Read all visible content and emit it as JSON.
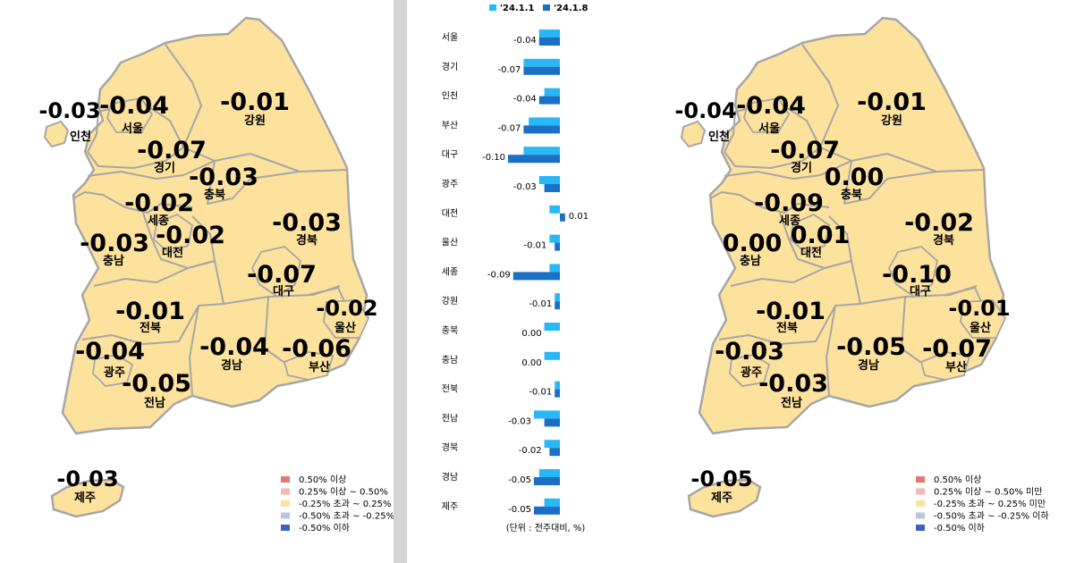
{
  "colors": {
    "land": "#fde29d",
    "border": "#a6a6a6",
    "bar_prev": "#27b8f5",
    "bar_curr": "#1b6fc4",
    "legend": [
      "#e87575",
      "#f4b6b6",
      "#fde29d",
      "#b7c6e2",
      "#3c63c2"
    ]
  },
  "chart_data": [
    {
      "type": "choropleth-map",
      "title": "",
      "regions": [
        {
          "name": "서울",
          "value": "-0.04"
        },
        {
          "name": "인천",
          "value": "-0.03"
        },
        {
          "name": "경기",
          "value": "-0.07"
        },
        {
          "name": "강원",
          "value": "-0.01"
        },
        {
          "name": "충북",
          "value": "-0.03"
        },
        {
          "name": "세종",
          "value": "-0.02"
        },
        {
          "name": "대전",
          "value": "-0.02"
        },
        {
          "name": "충남",
          "value": "-0.03"
        },
        {
          "name": "경북",
          "value": "-0.03"
        },
        {
          "name": "대구",
          "value": "-0.07"
        },
        {
          "name": "울산",
          "value": "-0.02"
        },
        {
          "name": "전북",
          "value": "-0.01"
        },
        {
          "name": "광주",
          "value": "-0.04"
        },
        {
          "name": "전남",
          "value": "-0.05"
        },
        {
          "name": "경남",
          "value": "-0.04"
        },
        {
          "name": "부산",
          "value": "-0.06"
        },
        {
          "name": "제주",
          "value": "-0.03"
        }
      ],
      "legend": [
        "0.50% 이상",
        "0.25% 이상 ~ 0.50%",
        "-0.25% 초과 ~ 0.25%",
        "-0.50% 초과 ~ -0.25%",
        "-0.50% 이하"
      ]
    },
    {
      "type": "bar",
      "orientation": "horizontal",
      "categories": [
        "서울",
        "경기",
        "인천",
        "부산",
        "대구",
        "광주",
        "대전",
        "울산",
        "세종",
        "강원",
        "충북",
        "충남",
        "전북",
        "전남",
        "경북",
        "경남",
        "제주"
      ],
      "series": [
        {
          "name": "'24.1.1",
          "values": [
            -0.04,
            -0.07,
            -0.03,
            -0.06,
            -0.07,
            -0.04,
            -0.02,
            -0.02,
            -0.02,
            -0.01,
            -0.03,
            -0.03,
            -0.01,
            -0.05,
            -0.03,
            -0.04,
            -0.03
          ]
        },
        {
          "name": "'24.1.8",
          "values": [
            -0.04,
            -0.07,
            -0.04,
            -0.07,
            -0.1,
            -0.03,
            0.01,
            -0.01,
            -0.09,
            -0.01,
            0.0,
            0.0,
            -0.01,
            -0.03,
            -0.02,
            -0.05,
            -0.05
          ]
        }
      ],
      "value_labels": [
        "-0.04",
        "-0.07",
        "-0.04",
        "-0.07",
        "-0.10",
        "-0.03",
        "0.01",
        "-0.01",
        "-0.09",
        "-0.01",
        "0.00",
        "0.00",
        "-0.01",
        "-0.03",
        "-0.02",
        "-0.05",
        "-0.05"
      ],
      "xlim": [
        -0.1,
        0.02
      ],
      "unit_note": "(단위 : 전주대비, %)"
    },
    {
      "type": "choropleth-map",
      "title": "",
      "regions": [
        {
          "name": "서울",
          "value": "-0.04"
        },
        {
          "name": "인천",
          "value": "-0.04"
        },
        {
          "name": "경기",
          "value": "-0.07"
        },
        {
          "name": "강원",
          "value": "-0.01"
        },
        {
          "name": "충북",
          "value": "0.00"
        },
        {
          "name": "세종",
          "value": "-0.09"
        },
        {
          "name": "대전",
          "value": "0.01"
        },
        {
          "name": "충남",
          "value": "0.00"
        },
        {
          "name": "경북",
          "value": "-0.02"
        },
        {
          "name": "대구",
          "value": "-0.10"
        },
        {
          "name": "울산",
          "value": "-0.01"
        },
        {
          "name": "전북",
          "value": "-0.01"
        },
        {
          "name": "광주",
          "value": "-0.03"
        },
        {
          "name": "전남",
          "value": "-0.03"
        },
        {
          "name": "경남",
          "value": "-0.05"
        },
        {
          "name": "부산",
          "value": "-0.07"
        },
        {
          "name": "제주",
          "value": "-0.05"
        }
      ],
      "legend": [
        "0.50% 이상",
        "0.25% 이상 ~ 0.50% 미만",
        "-0.25% 초과 ~ 0.25% 미만",
        "-0.50% 초과 ~ -0.25% 이하",
        "-0.50% 이하"
      ]
    }
  ]
}
